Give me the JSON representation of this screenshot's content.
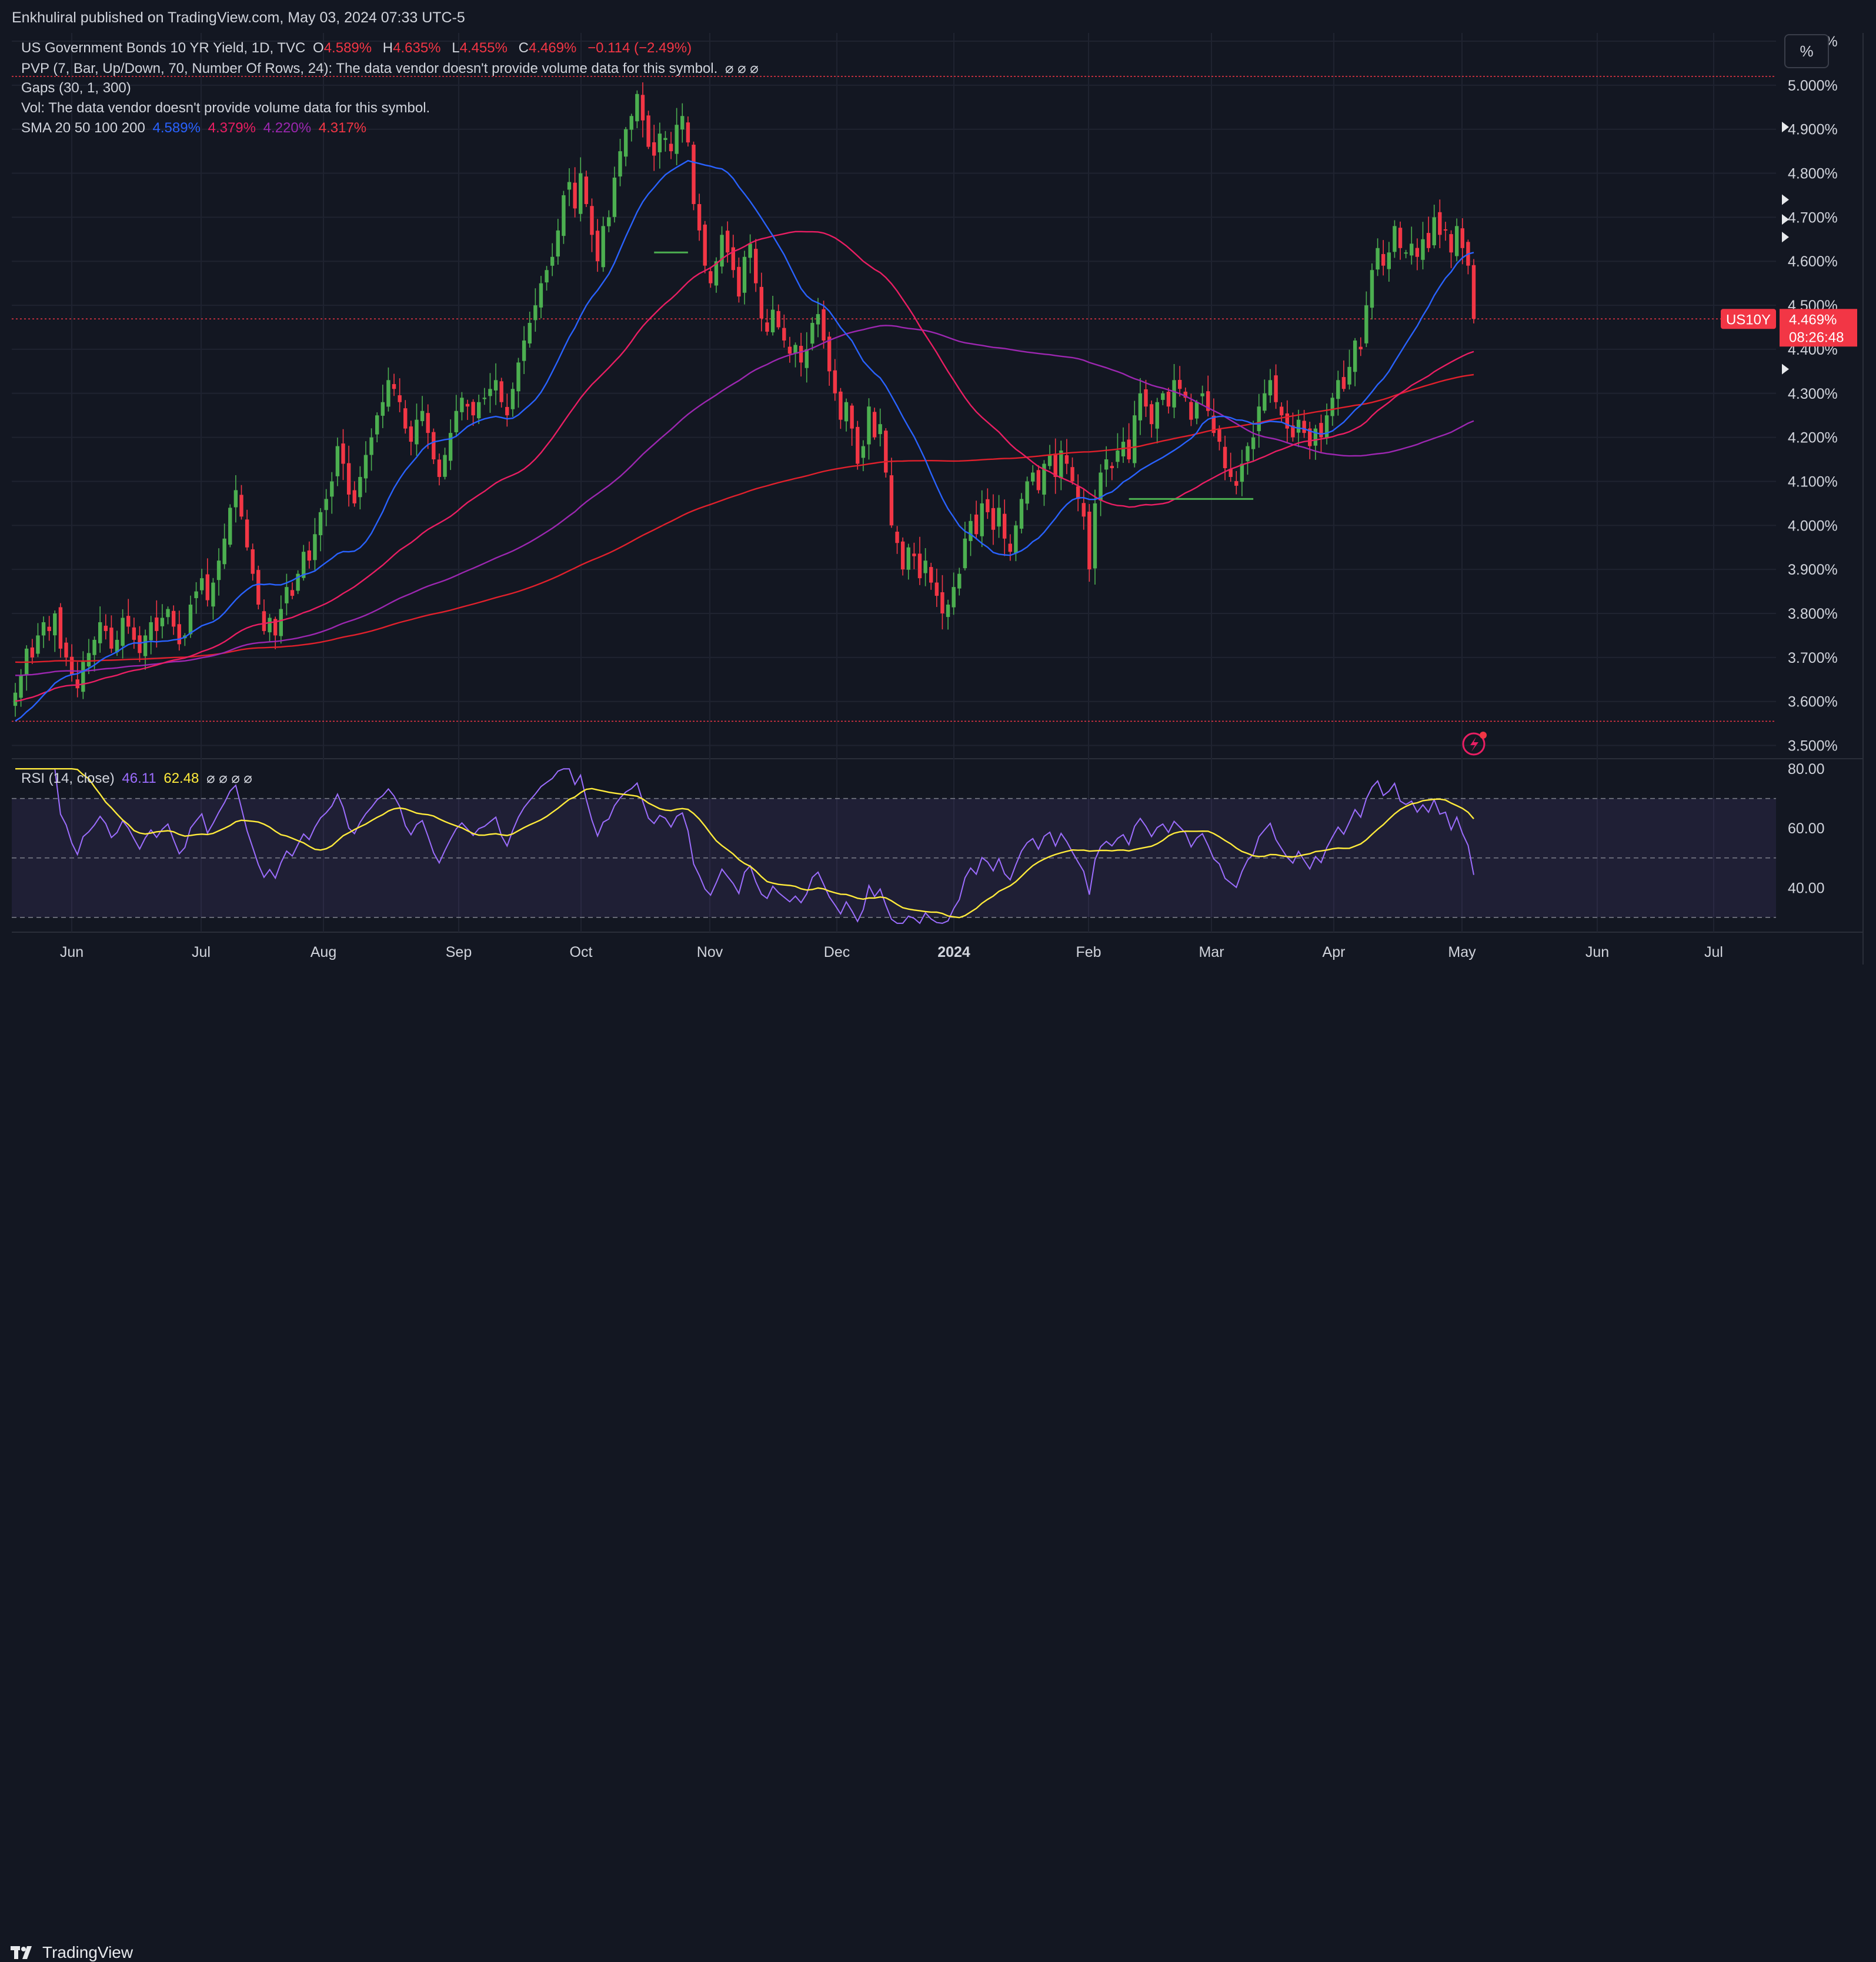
{
  "header": {
    "publisher_line": "Enkhuliral published on TradingView.com, May 03, 2024 07:33 UTC-5"
  },
  "footer": {
    "brand": "TradingView"
  },
  "percent_button": "%",
  "legend": {
    "title": "US Government Bonds 10 YR Yield, 1D, TVC",
    "o_label": "O",
    "o_value": "4.589%",
    "h_label": "H",
    "h_value": "4.635%",
    "l_label": "L",
    "l_value": "4.455%",
    "c_label": "C",
    "c_value": "4.469%",
    "change": "−0.114 (−2.49%)",
    "pvp": "PVP (7, Bar, Up/Down, 70, Number Of Rows, 24): The data vendor doesn't provide volume data for this symbol.",
    "pvp_icons": "⌀  ⌀  ⌀",
    "gaps": "Gaps (30, 1, 300)",
    "vol": "Vol: The data vendor doesn't provide volume data for this symbol.",
    "sma_label": "SMA 20 50 100 200",
    "sma20": "4.589%",
    "sma50": "4.379%",
    "sma100": "4.220%",
    "sma200": "4.317%",
    "rsi_label": "RSI (14, close)",
    "rsi_value": "46.11",
    "rsi_ma_value": "62.48",
    "rsi_icons": "⌀  ⌀  ⌀  ⌀"
  },
  "price_tag": {
    "symbol": "US10Y",
    "price": "4.469%",
    "countdown": "08:26:48"
  },
  "colors": {
    "background": "#131722",
    "up": "#26a69a",
    "up_candle": "#4caf50",
    "down": "#f23645",
    "sma20": "#2962ff",
    "sma50": "#e91e63",
    "sma100": "#9c27b0",
    "sma200": "#e0202c",
    "rsi": "#9c6dff",
    "rsi_ma": "#ffeb3b",
    "grid": "#1f2330"
  },
  "chart_data": {
    "type": "candlestick",
    "symbol": "US10Y",
    "title": "US Government Bonds 10 YR Yield, 1D, TVC",
    "x_tick_labels": [
      "Jun",
      "Jul",
      "Aug",
      "Sep",
      "Oct",
      "Nov",
      "Dec",
      "2024",
      "Feb",
      "Mar",
      "Apr",
      "May",
      "Jun",
      "Jul"
    ],
    "y_tick_labels": [
      "3.500%",
      "3.600%",
      "3.700%",
      "3.800%",
      "3.900%",
      "4.000%",
      "4.100%",
      "4.200%",
      "4.300%",
      "4.400%",
      "4.500%",
      "4.600%",
      "4.700%",
      "4.800%",
      "4.900%",
      "5.000%",
      "5.100%"
    ],
    "ylim": [
      3.47,
      5.1
    ],
    "candles_close": [
      3.62,
      3.66,
      3.72,
      3.7,
      3.75,
      3.78,
      3.76,
      3.8,
      3.72,
      3.7,
      3.66,
      3.63,
      3.69,
      3.71,
      3.74,
      3.78,
      3.76,
      3.72,
      3.74,
      3.79,
      3.77,
      3.74,
      3.71,
      3.75,
      3.78,
      3.76,
      3.79,
      3.81,
      3.77,
      3.73,
      3.75,
      3.82,
      3.85,
      3.88,
      3.83,
      3.87,
      3.92,
      3.97,
      4.04,
      4.08,
      4.02,
      3.95,
      3.89,
      3.82,
      3.76,
      3.79,
      3.75,
      3.81,
      3.86,
      3.84,
      3.89,
      3.94,
      3.92,
      3.98,
      4.03,
      4.06,
      4.1,
      4.18,
      4.14,
      4.07,
      4.05,
      4.11,
      4.16,
      4.2,
      4.25,
      4.28,
      4.33,
      4.31,
      4.28,
      4.22,
      4.19,
      4.24,
      4.26,
      4.21,
      4.15,
      4.11,
      4.16,
      4.21,
      4.26,
      4.29,
      4.27,
      4.25,
      4.28,
      4.29,
      4.31,
      4.33,
      4.28,
      4.25,
      4.31,
      4.37,
      4.42,
      4.46,
      4.5,
      4.55,
      4.58,
      4.61,
      4.67,
      4.75,
      4.78,
      4.72,
      4.8,
      4.73,
      4.66,
      4.6,
      4.68,
      4.7,
      4.79,
      4.85,
      4.9,
      4.93,
      4.98,
      4.92,
      4.86,
      4.84,
      4.89,
      4.88,
      4.85,
      4.91,
      4.93,
      4.87,
      4.73,
      4.67,
      4.59,
      4.55,
      4.6,
      4.66,
      4.62,
      4.58,
      4.52,
      4.61,
      4.64,
      4.55,
      4.47,
      4.44,
      4.49,
      4.45,
      4.42,
      4.39,
      4.41,
      4.37,
      4.4,
      4.46,
      4.48,
      4.42,
      4.35,
      4.3,
      4.24,
      4.28,
      4.22,
      4.14,
      4.18,
      4.27,
      4.2,
      4.23,
      4.12,
      4.0,
      3.96,
      3.9,
      3.95,
      3.93,
      3.88,
      3.92,
      3.87,
      3.84,
      3.8,
      3.82,
      3.86,
      3.89,
      3.97,
      4.01,
      3.98,
      4.05,
      4.03,
      3.99,
      4.04,
      3.97,
      3.94,
      4.0,
      4.06,
      4.1,
      4.12,
      4.08,
      4.14,
      4.16,
      4.11,
      4.17,
      4.14,
      4.1,
      4.06,
      4.02,
      3.9,
      4.05,
      4.12,
      4.15,
      4.13,
      4.17,
      4.19,
      4.15,
      4.25,
      4.3,
      4.27,
      4.23,
      4.28,
      4.3,
      4.27,
      4.33,
      4.31,
      4.29,
      4.24,
      4.28,
      4.3,
      4.26,
      4.21,
      4.19,
      4.13,
      4.11,
      4.09,
      4.14,
      4.18,
      4.2,
      4.27,
      4.3,
      4.33,
      4.28,
      4.25,
      4.22,
      4.2,
      4.24,
      4.21,
      4.18,
      4.22,
      4.2,
      4.25,
      4.29,
      4.33,
      4.31,
      4.36,
      4.42,
      4.4,
      4.5,
      4.58,
      4.63,
      4.59,
      4.62,
      4.68,
      4.63,
      4.62,
      4.64,
      4.61,
      4.65,
      4.63,
      4.7,
      4.66,
      4.67,
      4.62,
      4.68,
      4.63,
      4.59,
      4.469
    ],
    "sma_values_last": {
      "SMA20": 4.589,
      "SMA50": 4.379,
      "SMA100": 4.22,
      "SMA200": 4.317
    },
    "last_price": 4.469,
    "rsi": {
      "period": 14,
      "value": 46.11,
      "ma": 62.48,
      "ylim": [
        26,
        83
      ],
      "y_tick_labels": [
        "40.00",
        "60.00",
        "80.00"
      ],
      "upper_band": 70,
      "middle_band": 50,
      "lower_band": 30
    },
    "grid": true,
    "legend_position": "top-left"
  }
}
